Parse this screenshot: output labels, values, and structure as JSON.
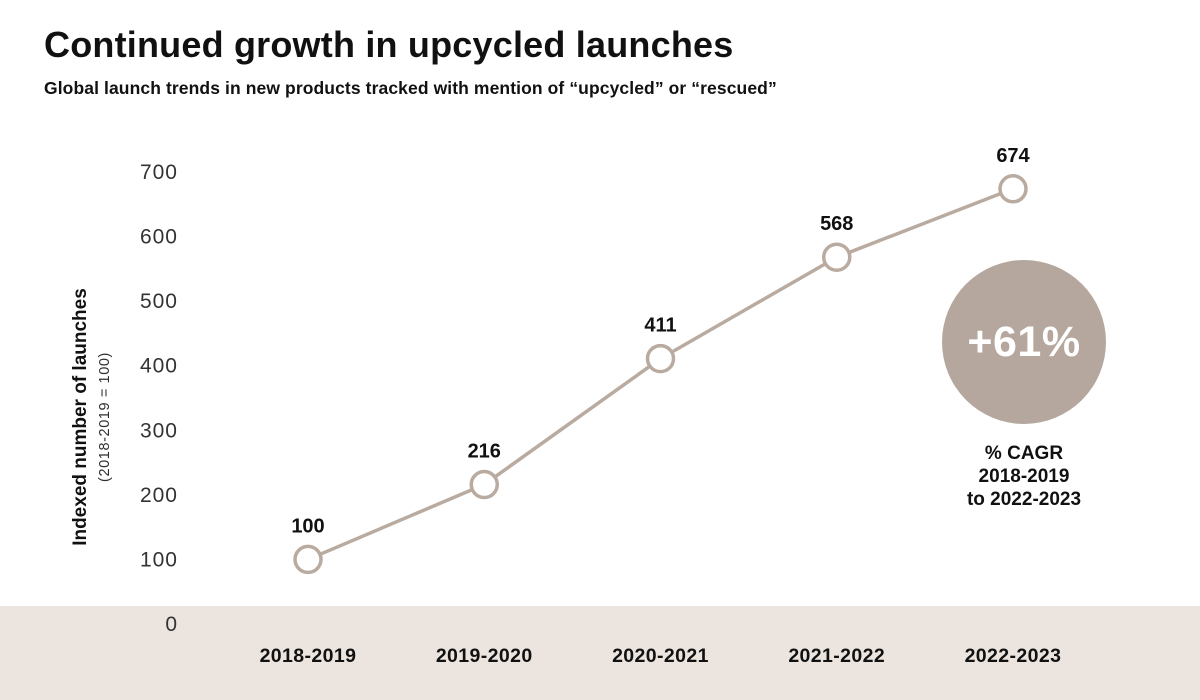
{
  "header": {
    "title": "Continued growth in upcycled launches",
    "subtitle": "Global launch trends in new products tracked with mention of “upcycled” or “rescued”"
  },
  "chart_data": {
    "type": "line",
    "categories": [
      "2018-2019",
      "2019-2020",
      "2020-2021",
      "2021-2022",
      "2022-2023"
    ],
    "values": [
      100,
      216,
      411,
      568,
      674
    ],
    "title": "Continued growth in upcycled launches",
    "xlabel": "",
    "ylabel": "Indexed number of launches",
    "ylabel_note": "(2018-2019 = 100)",
    "ylim": [
      0,
      700
    ],
    "ytick_step": 100,
    "yticks": [
      0,
      100,
      200,
      300,
      400,
      500,
      600,
      700
    ],
    "grid": false,
    "legend": "none",
    "data_labels": true,
    "colors": {
      "line": "#b9aba0",
      "marker_fill": "#ffffff",
      "marker_stroke": "#b9aba0",
      "tick_label": "#333333",
      "data_label": "#111111",
      "x_label": "#111111",
      "band": "#ece4de"
    }
  },
  "badge": {
    "value": "+61%",
    "color": "#b5a79e",
    "text_color": "#ffffff",
    "caption_lines": [
      "% CAGR",
      "2018-2019",
      "to 2022-2023"
    ]
  }
}
